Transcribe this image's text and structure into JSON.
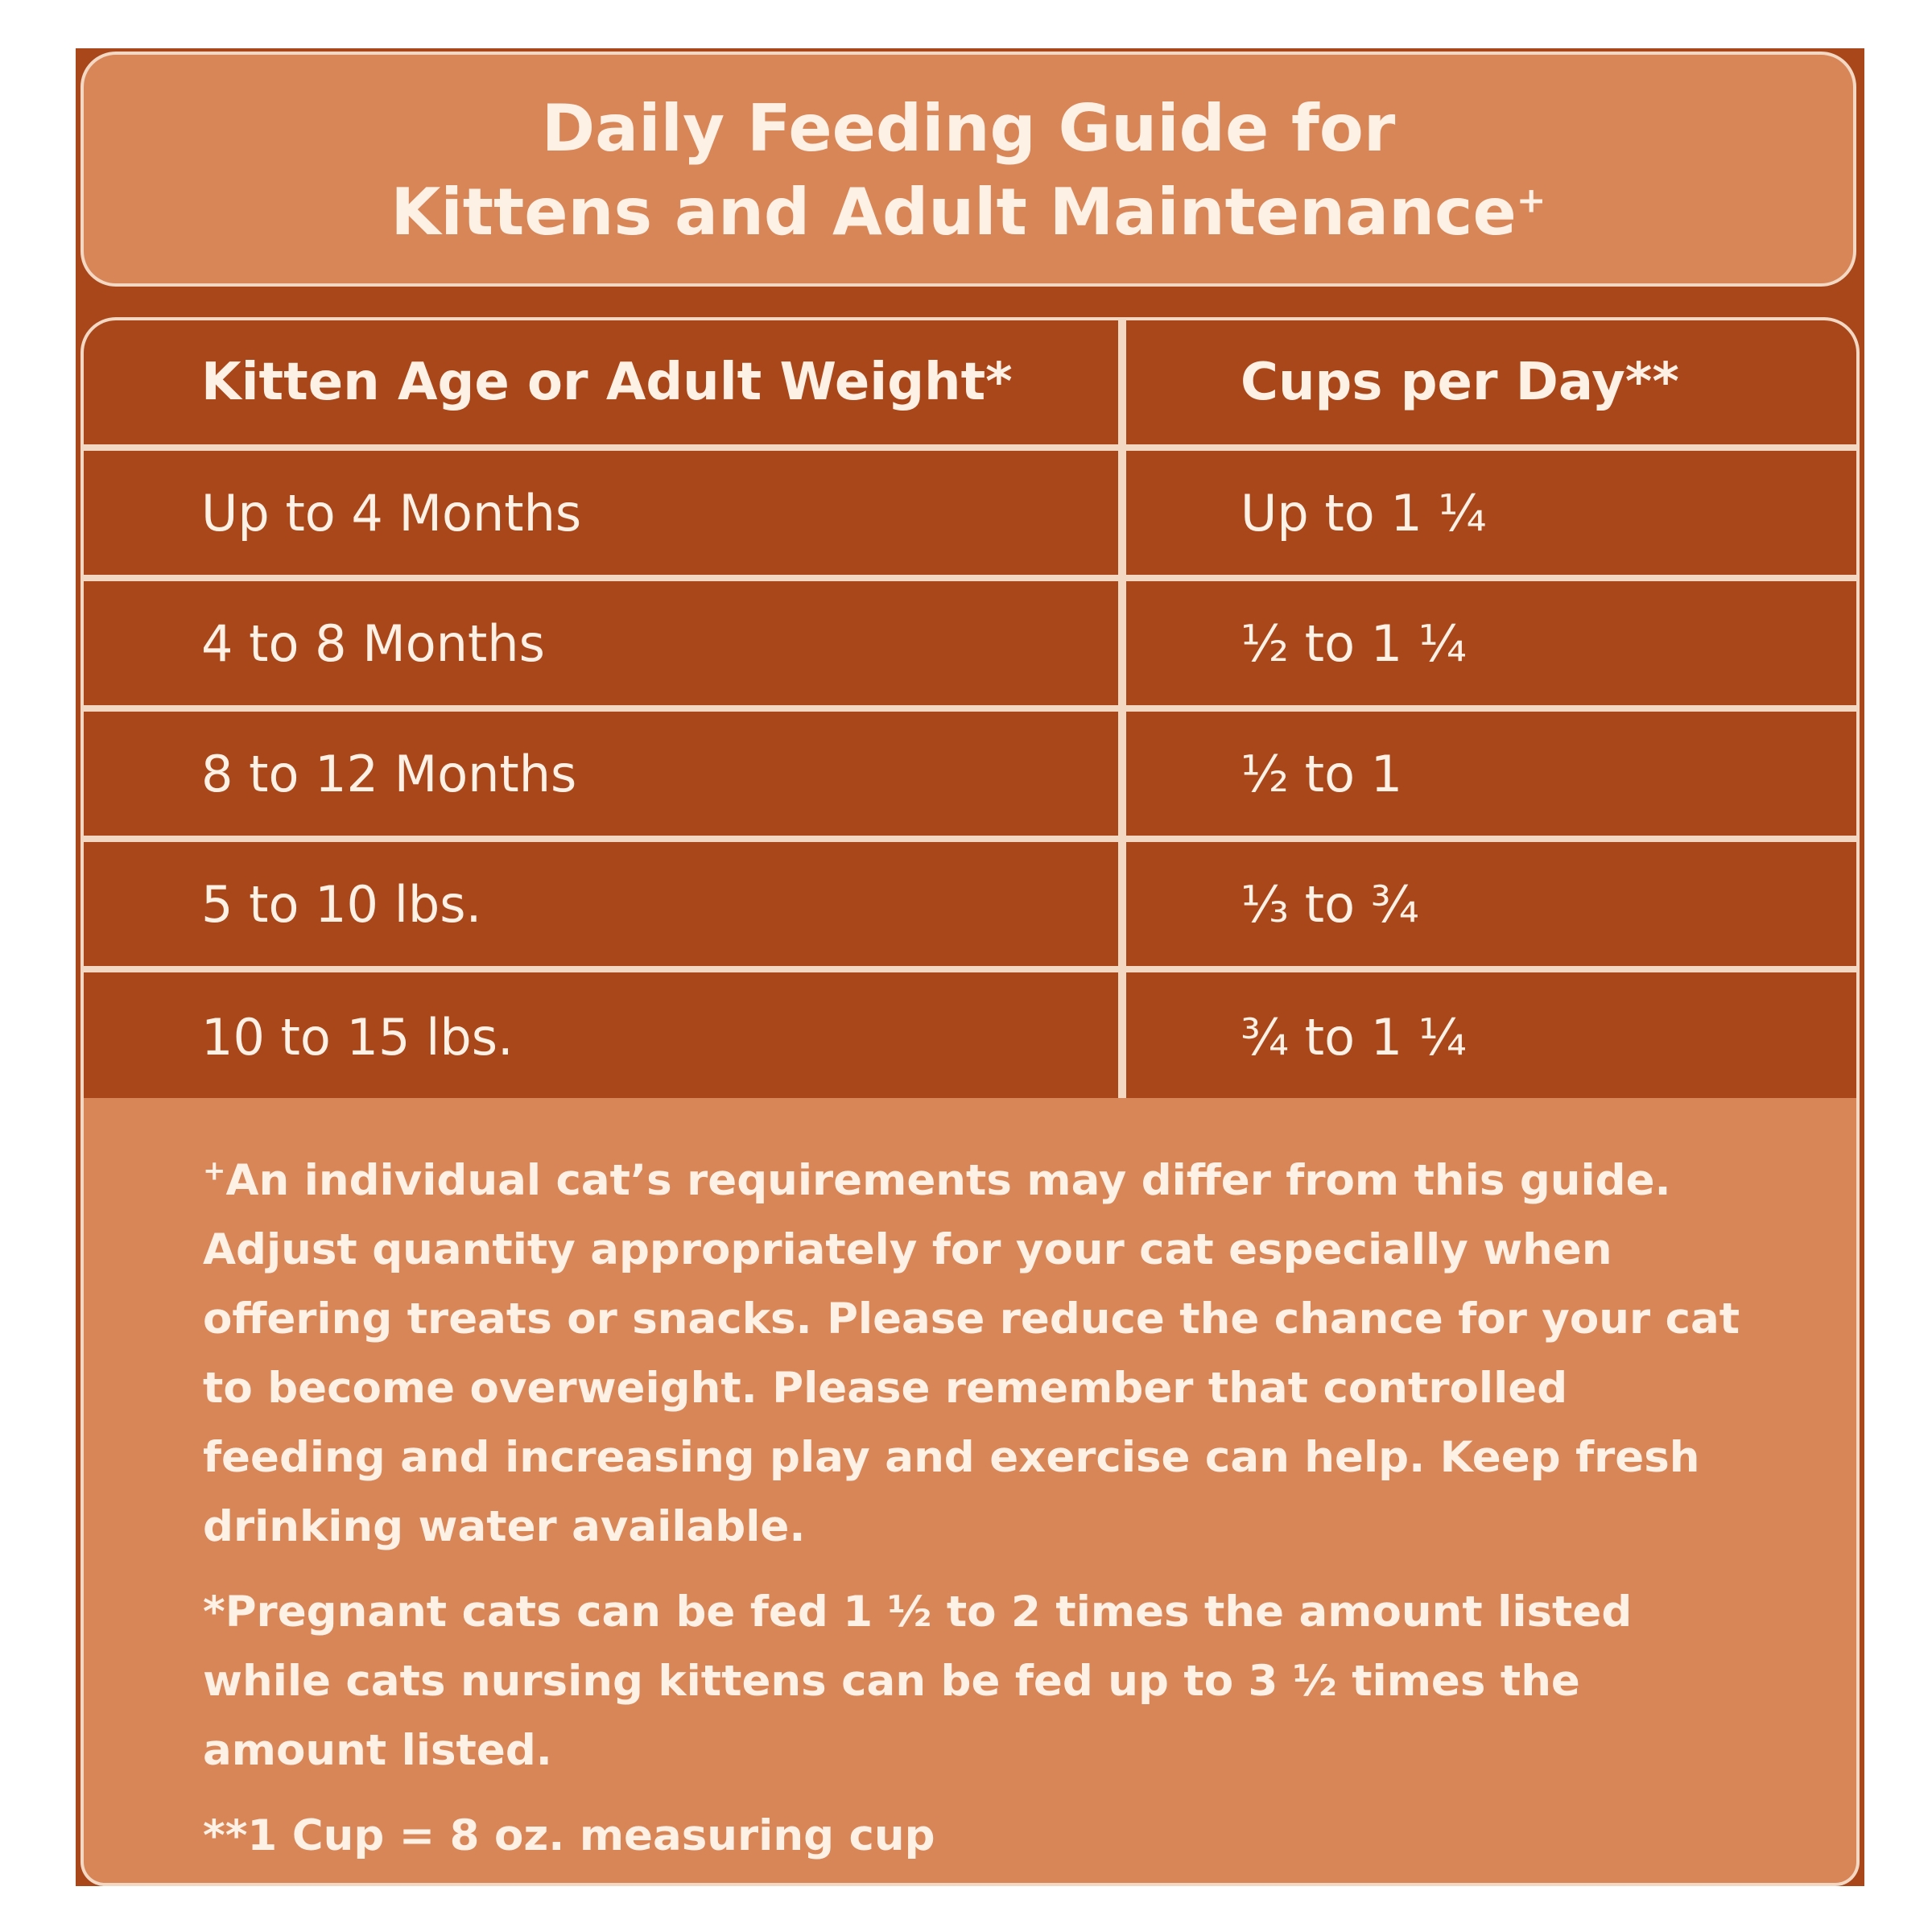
{
  "title": {
    "line1": "Daily Feeding Guide for",
    "line2": "Kittens and Adult Maintenance",
    "line2_mark": "+"
  },
  "table": {
    "headers": [
      "Kitten Age or Adult Weight*",
      "Cups per Day**"
    ],
    "rows": [
      {
        "age_weight": "Up to 4 Months",
        "cups": "Up to 1 ¼"
      },
      {
        "age_weight": "4 to 8 Months",
        "cups": "½ to 1 ¼"
      },
      {
        "age_weight": "8 to 12 Months",
        "cups": "½ to 1"
      },
      {
        "age_weight": "5 to 10 lbs.",
        "cups": "⅓ to ¾"
      },
      {
        "age_weight": "10 to 15 lbs.",
        "cups": "¾ to 1 ¼"
      }
    ]
  },
  "notes": {
    "note1_mark": "+",
    "note1": "An individual cat’s requirements may differ from this guide. Adjust quantity appropriately for your cat especially when offering treats or snacks. Please reduce the chance for your cat to become overweight. Please remember that controlled feeding and increasing play and exercise can help. Keep fresh drinking water available.",
    "note2": "*Pregnant cats can be fed 1 ½ to 2 times the amount listed while cats nursing kittens can be fed up to 3 ½ times the amount listed.",
    "note3": "**1 Cup = 8 oz. measuring cup"
  },
  "colors": {
    "panel": "#a9471a",
    "light_box": "#d88658",
    "border": "#f3d8c4",
    "text": "#fdf1e6"
  }
}
